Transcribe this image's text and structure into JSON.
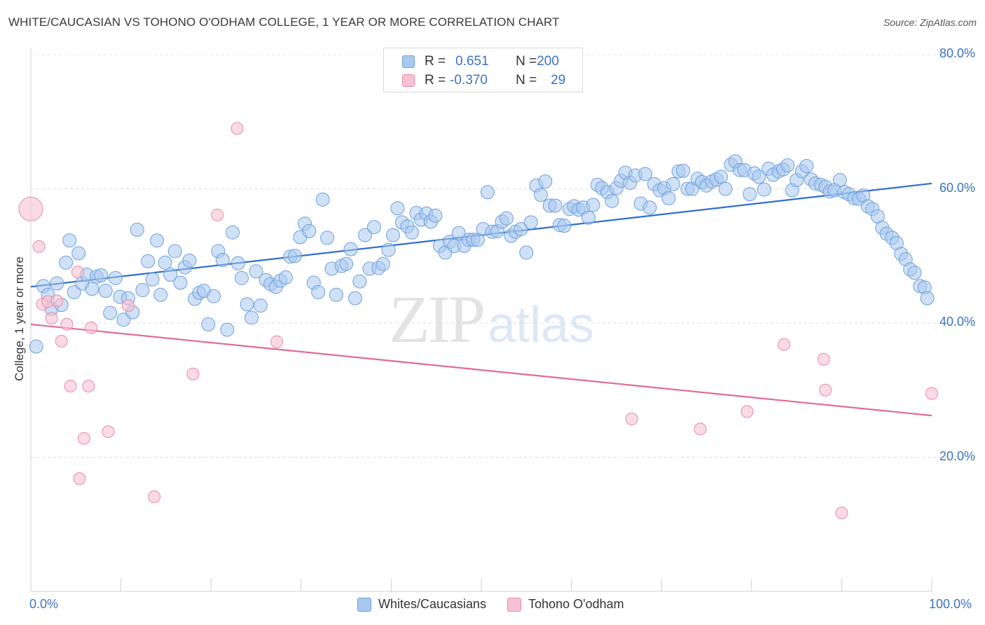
{
  "title": "WHITE/CAUCASIAN VS TOHONO O'ODHAM COLLEGE, 1 YEAR OR MORE CORRELATION CHART",
  "source": "Source: ZipAtlas.com",
  "watermark": {
    "zip": "ZIP",
    "atlas": "atlas"
  },
  "legend_top": {
    "rows": [
      {
        "r_label": "R = ",
        "r_value": " 0.651",
        "n_label": "N = ",
        "n_value": "200"
      },
      {
        "r_label": "R = ",
        "r_value": "-0.370",
        "n_label": "N = ",
        "n_value": "29"
      }
    ]
  },
  "colors": {
    "blue_fill": "#a9c8ef",
    "blue_stroke": "#6b9fdc",
    "blue_line": "#2f6fcc",
    "pink_fill": "#f7c1d1",
    "pink_stroke": "#e98aa8",
    "pink_line": "#e06b93",
    "tick_text": "#3b74c4"
  },
  "chart_data": {
    "type": "scatter",
    "title": "WHITE/CAUCASIAN VS TOHONO O'ODHAM COLLEGE, 1 YEAR OR MORE CORRELATION CHART",
    "xlabel": "",
    "ylabel": "College, 1 year or more",
    "xlim": [
      0,
      100
    ],
    "ylim": [
      0,
      80
    ],
    "x_tick_labels": [
      "0.0%",
      "100.0%"
    ],
    "y_ticks": [
      20,
      40,
      60,
      80
    ],
    "y_tick_labels": [
      "20.0%",
      "40.0%",
      "60.0%",
      "80.0%"
    ],
    "grid": true,
    "legend_position": "bottom",
    "series": [
      {
        "name": "Whites/Caucasians",
        "r": 0.651,
        "n": 200,
        "trend": {
          "x": [
            0,
            100
          ],
          "y": [
            45.4,
            60.8
          ]
        },
        "points": [
          [
            0.6,
            36.5
          ],
          [
            1.4,
            45.5
          ],
          [
            1.9,
            44.2
          ],
          [
            2.3,
            42.1
          ],
          [
            2.9,
            45.9
          ],
          [
            3.4,
            42.7
          ],
          [
            3.9,
            49.0
          ],
          [
            4.3,
            52.3
          ],
          [
            4.8,
            44.6
          ],
          [
            5.3,
            50.4
          ],
          [
            5.7,
            45.9
          ],
          [
            6.2,
            47.2
          ],
          [
            6.8,
            45.1
          ],
          [
            7.3,
            46.9
          ],
          [
            7.8,
            47.1
          ],
          [
            8.3,
            44.8
          ],
          [
            8.8,
            41.5
          ],
          [
            9.4,
            46.7
          ],
          [
            9.9,
            43.9
          ],
          [
            10.3,
            40.5
          ],
          [
            10.8,
            43.7
          ],
          [
            11.3,
            41.6
          ],
          [
            11.8,
            53.9
          ],
          [
            12.4,
            44.9
          ],
          [
            13.0,
            49.2
          ],
          [
            13.5,
            46.5
          ],
          [
            14.0,
            52.3
          ],
          [
            14.4,
            44.2
          ],
          [
            14.9,
            49.0
          ],
          [
            15.5,
            47.2
          ],
          [
            16.0,
            50.7
          ],
          [
            16.6,
            46.0
          ],
          [
            17.1,
            48.3
          ],
          [
            17.6,
            49.3
          ],
          [
            18.2,
            43.6
          ],
          [
            18.7,
            44.5
          ],
          [
            19.2,
            44.8
          ],
          [
            19.7,
            39.8
          ],
          [
            20.3,
            44.0
          ],
          [
            20.8,
            50.7
          ],
          [
            21.3,
            49.4
          ],
          [
            21.8,
            39.0
          ],
          [
            22.4,
            53.5
          ],
          [
            23.0,
            48.9
          ],
          [
            23.4,
            46.7
          ],
          [
            24.0,
            42.8
          ],
          [
            24.5,
            40.8
          ],
          [
            25.0,
            47.7
          ],
          [
            25.5,
            42.6
          ],
          [
            26.1,
            46.4
          ],
          [
            26.6,
            45.8
          ],
          [
            27.2,
            45.4
          ],
          [
            27.7,
            46.3
          ],
          [
            28.3,
            46.8
          ],
          [
            28.8,
            49.9
          ],
          [
            29.3,
            50.0
          ],
          [
            29.9,
            52.8
          ],
          [
            30.4,
            54.8
          ],
          [
            30.9,
            53.7
          ],
          [
            31.4,
            46.0
          ],
          [
            31.9,
            44.6
          ],
          [
            32.4,
            58.4
          ],
          [
            32.9,
            52.7
          ],
          [
            33.4,
            48.1
          ],
          [
            33.9,
            44.2
          ],
          [
            34.5,
            48.5
          ],
          [
            35.0,
            48.8
          ],
          [
            35.5,
            51.0
          ],
          [
            36.0,
            43.7
          ],
          [
            36.5,
            46.2
          ],
          [
            37.1,
            53.1
          ],
          [
            37.6,
            48.1
          ],
          [
            38.1,
            54.3
          ],
          [
            38.6,
            48.2
          ],
          [
            39.1,
            48.8
          ],
          [
            39.7,
            50.9
          ],
          [
            40.2,
            53.1
          ],
          [
            40.7,
            57.1
          ],
          [
            41.2,
            55.0
          ],
          [
            41.8,
            54.4
          ],
          [
            42.3,
            53.5
          ],
          [
            42.8,
            56.4
          ],
          [
            43.3,
            55.4
          ],
          [
            43.9,
            56.3
          ],
          [
            44.4,
            55.1
          ],
          [
            44.9,
            56.0
          ],
          [
            45.4,
            51.5
          ],
          [
            46.0,
            50.5
          ],
          [
            46.5,
            52.1
          ],
          [
            47.0,
            51.5
          ],
          [
            47.5,
            53.4
          ],
          [
            48.1,
            51.5
          ],
          [
            48.6,
            52.4
          ],
          [
            49.1,
            52.4
          ],
          [
            49.6,
            52.4
          ],
          [
            50.2,
            54.0
          ],
          [
            50.7,
            59.5
          ],
          [
            51.2,
            53.6
          ],
          [
            51.8,
            53.7
          ],
          [
            52.3,
            55.1
          ],
          [
            52.8,
            55.6
          ],
          [
            53.3,
            53.0
          ],
          [
            53.8,
            53.6
          ],
          [
            54.4,
            54.0
          ],
          [
            55.0,
            50.5
          ],
          [
            55.5,
            55.0
          ],
          [
            56.1,
            60.5
          ],
          [
            56.6,
            59.1
          ],
          [
            57.1,
            61.1
          ],
          [
            57.6,
            57.5
          ],
          [
            58.2,
            57.5
          ],
          [
            58.7,
            54.6
          ],
          [
            59.2,
            54.5
          ],
          [
            59.8,
            57.0
          ],
          [
            60.3,
            57.4
          ],
          [
            60.8,
            56.9
          ],
          [
            61.3,
            57.2
          ],
          [
            61.9,
            55.7
          ],
          [
            62.4,
            57.6
          ],
          [
            62.9,
            60.6
          ],
          [
            63.4,
            60.1
          ],
          [
            64.0,
            59.5
          ],
          [
            64.5,
            58.2
          ],
          [
            65.0,
            60.1
          ],
          [
            65.5,
            61.2
          ],
          [
            66.0,
            62.4
          ],
          [
            66.5,
            60.9
          ],
          [
            67.1,
            62.0
          ],
          [
            67.7,
            57.8
          ],
          [
            68.2,
            62.2
          ],
          [
            68.7,
            57.2
          ],
          [
            69.2,
            60.7
          ],
          [
            69.8,
            59.8
          ],
          [
            70.3,
            60.1
          ],
          [
            70.8,
            58.6
          ],
          [
            71.3,
            60.7
          ],
          [
            71.9,
            62.6
          ],
          [
            72.4,
            62.7
          ],
          [
            72.9,
            60.0
          ],
          [
            73.4,
            60.0
          ],
          [
            74.0,
            61.5
          ],
          [
            74.5,
            61.0
          ],
          [
            75.0,
            60.5
          ],
          [
            75.6,
            61.1
          ],
          [
            76.1,
            61.4
          ],
          [
            76.6,
            61.8
          ],
          [
            77.1,
            60.0
          ],
          [
            77.7,
            63.6
          ],
          [
            78.2,
            64.1
          ],
          [
            78.7,
            62.8
          ],
          [
            79.2,
            62.8
          ],
          [
            79.8,
            59.2
          ],
          [
            80.3,
            62.3
          ],
          [
            80.8,
            61.8
          ],
          [
            81.4,
            59.9
          ],
          [
            81.9,
            63.0
          ],
          [
            82.4,
            62.1
          ],
          [
            83.0,
            62.6
          ],
          [
            83.5,
            62.9
          ],
          [
            84.0,
            63.5
          ],
          [
            84.5,
            59.8
          ],
          [
            85.0,
            61.3
          ],
          [
            85.6,
            62.6
          ],
          [
            86.1,
            63.4
          ],
          [
            86.6,
            61.4
          ],
          [
            87.1,
            60.8
          ],
          [
            87.7,
            60.6
          ],
          [
            88.2,
            60.3
          ],
          [
            88.7,
            59.6
          ],
          [
            89.2,
            59.8
          ],
          [
            89.8,
            61.3
          ],
          [
            90.3,
            59.5
          ],
          [
            90.8,
            59.2
          ],
          [
            91.4,
            58.6
          ],
          [
            91.9,
            58.5
          ],
          [
            92.4,
            59.0
          ],
          [
            92.9,
            57.4
          ],
          [
            93.4,
            57.0
          ],
          [
            94.0,
            55.9
          ],
          [
            94.5,
            54.2
          ],
          [
            95.0,
            53.3
          ],
          [
            95.6,
            52.7
          ],
          [
            96.1,
            51.9
          ],
          [
            96.6,
            50.3
          ],
          [
            97.1,
            49.5
          ],
          [
            97.6,
            48.0
          ],
          [
            98.1,
            47.5
          ],
          [
            98.7,
            45.5
          ],
          [
            99.2,
            45.3
          ],
          [
            99.5,
            43.7
          ]
        ]
      },
      {
        "name": "Tohono O'odham",
        "r": -0.37,
        "n": 29,
        "trend": {
          "x": [
            0,
            100
          ],
          "y": [
            39.8,
            26.2
          ]
        },
        "points": [
          [
            0.0,
            57.0
          ],
          [
            0.9,
            51.4
          ],
          [
            1.3,
            42.8
          ],
          [
            1.9,
            43.2
          ],
          [
            2.3,
            40.7
          ],
          [
            2.9,
            43.3
          ],
          [
            3.4,
            37.3
          ],
          [
            4.0,
            39.8
          ],
          [
            4.4,
            30.6
          ],
          [
            5.2,
            47.6
          ],
          [
            5.4,
            16.8
          ],
          [
            5.9,
            22.8
          ],
          [
            6.4,
            30.6
          ],
          [
            6.7,
            39.3
          ],
          [
            8.6,
            23.8
          ],
          [
            10.8,
            42.6
          ],
          [
            13.7,
            14.1
          ],
          [
            18.0,
            32.4
          ],
          [
            20.7,
            56.1
          ],
          [
            22.9,
            69.0
          ],
          [
            27.3,
            37.2
          ],
          [
            83.6,
            36.8
          ],
          [
            66.7,
            25.7
          ],
          [
            74.3,
            24.2
          ],
          [
            79.5,
            26.8
          ],
          [
            88.0,
            34.6
          ],
          [
            88.2,
            30.0
          ],
          [
            90.0,
            11.7
          ],
          [
            100.0,
            29.5
          ]
        ]
      }
    ]
  }
}
